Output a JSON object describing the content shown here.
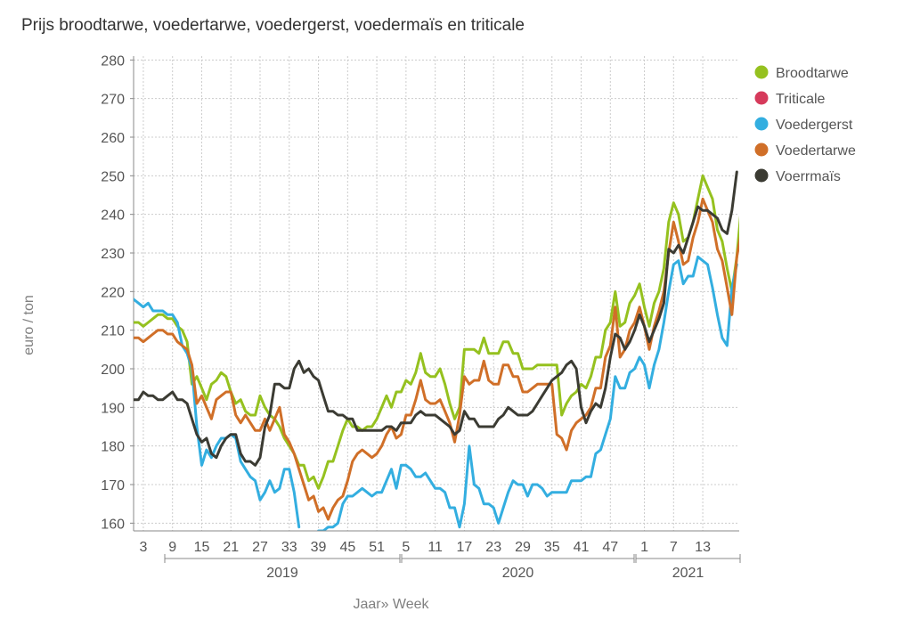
{
  "title": "Prijs broodtarwe, voedertarwe, voedergerst, voedermaïs en triticale",
  "chart_data": {
    "type": "line",
    "title": "Prijs broodtarwe, voedertarwe, voedergerst, voedermaïs en triticale",
    "xlabel": "Jaar» Week",
    "ylabel": "euro / ton",
    "ylim": [
      158,
      281
    ],
    "yticks": [
      160,
      170,
      180,
      190,
      200,
      210,
      220,
      230,
      240,
      250,
      260,
      270,
      280
    ],
    "grid": true,
    "legend_position": "right",
    "x_start_week": "2019-w1",
    "x_week_ticks": [
      {
        "year": 2019,
        "weeks": [
          3,
          9,
          15,
          21,
          27,
          33,
          39,
          45,
          51
        ]
      },
      {
        "year": 2020,
        "weeks": [
          5,
          11,
          17,
          23,
          29,
          35,
          41,
          47
        ]
      },
      {
        "year": 2021,
        "weeks": [
          1,
          7,
          13
        ]
      }
    ],
    "years": [
      {
        "label": "2019",
        "first_week": 1,
        "last_week": 52
      },
      {
        "label": "2020",
        "first_week": 1,
        "last_week": 53
      },
      {
        "label": "2021",
        "first_week": 1,
        "last_week": 15
      }
    ],
    "series": [
      {
        "name": "Broodtarwe",
        "color": "#95c11f",
        "values": [
          212,
          212,
          211,
          212,
          213,
          214,
          214,
          213,
          213,
          211,
          210,
          207,
          196,
          198,
          195,
          192,
          196,
          197,
          199,
          198,
          194,
          191,
          192,
          189,
          188,
          188,
          193,
          190,
          188,
          187,
          185,
          182,
          180,
          178,
          175,
          175,
          171,
          172,
          169,
          172,
          176,
          176,
          180,
          184,
          187,
          185,
          185,
          184,
          185,
          185,
          187,
          190,
          193,
          190,
          194,
          194,
          197,
          196,
          199,
          204,
          199,
          198,
          198,
          200,
          196,
          191,
          187,
          190,
          205,
          205,
          205,
          204,
          208,
          204,
          204,
          204,
          207,
          207,
          204,
          204,
          200,
          200,
          200,
          201,
          201,
          201,
          201,
          201,
          188,
          191,
          193,
          194,
          196,
          195,
          198,
          203,
          203,
          210,
          212,
          220,
          211,
          212,
          217,
          219,
          222,
          216,
          211,
          217,
          220,
          226,
          238,
          243,
          240,
          233,
          234,
          238,
          244,
          250,
          247,
          244,
          236,
          233,
          226,
          220,
          229,
          243
        ]
      },
      {
        "name": "Triticale",
        "color": "#d63a5b",
        "values": []
      },
      {
        "name": "Voedergerst",
        "color": "#33aee0",
        "values": [
          218,
          217,
          216,
          217,
          215,
          215,
          215,
          214,
          214,
          212,
          206,
          204,
          200,
          185,
          175,
          179,
          177,
          180,
          182,
          182,
          183,
          182,
          176,
          174,
          172,
          171,
          166,
          168,
          171,
          168,
          169,
          174,
          174,
          168,
          159,
          null,
          null,
          null,
          158,
          158,
          159,
          159,
          160,
          165,
          167,
          167,
          168,
          169,
          168,
          167,
          168,
          168,
          171,
          174,
          169,
          175,
          175,
          174,
          172,
          172,
          173,
          171,
          169,
          169,
          168,
          164,
          164,
          159,
          165,
          180,
          170,
          169,
          165,
          165,
          164,
          160,
          164,
          168,
          171,
          170,
          170,
          167,
          170,
          170,
          169,
          167,
          168,
          168,
          168,
          168,
          171,
          171,
          171,
          172,
          172,
          178,
          179,
          183,
          187,
          198,
          195,
          195,
          199,
          200,
          203,
          201,
          195,
          201,
          205,
          212,
          220,
          227,
          228,
          222,
          224,
          224,
          229,
          228,
          227,
          221,
          214,
          208,
          206,
          221,
          227
        ]
      },
      {
        "name": "Voedertarwe",
        "color": "#d06f28",
        "values": [
          208,
          208,
          207,
          208,
          209,
          210,
          210,
          209,
          209,
          207,
          206,
          205,
          201,
          191,
          193,
          190,
          187,
          192,
          193,
          194,
          194,
          188,
          186,
          188,
          186,
          184,
          184,
          187,
          184,
          187,
          190,
          183,
          181,
          178,
          174,
          170,
          166,
          167,
          163,
          164,
          161,
          164,
          166,
          167,
          171,
          176,
          178,
          179,
          178,
          177,
          178,
          180,
          183,
          185,
          182,
          183,
          188,
          188,
          192,
          197,
          192,
          191,
          191,
          192,
          189,
          186,
          181,
          188,
          198,
          196,
          197,
          197,
          202,
          197,
          196,
          196,
          201,
          201,
          198,
          198,
          194,
          194,
          195,
          196,
          196,
          196,
          196,
          183,
          182,
          179,
          184,
          186,
          187,
          188,
          190,
          195,
          195,
          203,
          206,
          216,
          203,
          205,
          210,
          212,
          216,
          211,
          205,
          211,
          215,
          220,
          230,
          238,
          233,
          227,
          228,
          234,
          238,
          244,
          241,
          238,
          231,
          228,
          221,
          214,
          229,
          236
        ]
      },
      {
        "name": "Voerrmaïs",
        "color": "#3b3b33",
        "values": [
          192,
          192,
          194,
          193,
          193,
          192,
          192,
          193,
          194,
          192,
          192,
          191,
          187,
          183,
          181,
          182,
          178,
          177,
          180,
          182,
          183,
          183,
          178,
          176,
          176,
          175,
          177,
          185,
          188,
          196,
          196,
          195,
          195,
          200,
          202,
          199,
          200,
          198,
          197,
          193,
          189,
          189,
          188,
          188,
          187,
          187,
          184,
          184,
          184,
          184,
          184,
          184,
          185,
          185,
          184,
          186,
          186,
          186,
          188,
          189,
          188,
          188,
          188,
          187,
          186,
          185,
          183,
          184,
          189,
          187,
          187,
          185,
          185,
          185,
          185,
          187,
          188,
          190,
          189,
          188,
          188,
          188,
          189,
          191,
          193,
          195,
          197,
          198,
          199,
          201,
          202,
          200,
          190,
          186,
          189,
          191,
          190,
          195,
          203,
          209,
          208,
          205,
          207,
          210,
          214,
          211,
          207,
          210,
          213,
          217,
          231,
          230,
          232,
          230,
          234,
          238,
          242,
          241,
          241,
          240,
          239,
          236,
          235,
          241,
          251
        ]
      }
    ]
  }
}
